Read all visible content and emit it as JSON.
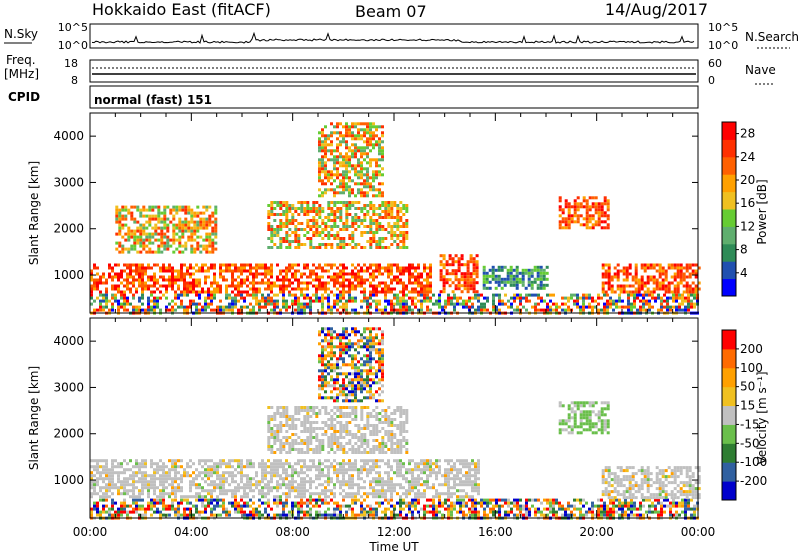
{
  "header": {
    "station": "Hokkaido East (fitACF)",
    "beam": "Beam 07",
    "date": "14/Aug/2017"
  },
  "nsky_panel": {
    "left_label": "N.Sky",
    "left_ticks": [
      "10^5",
      "10^0"
    ],
    "right_label": "N.Search",
    "right_ticks": [
      "10^5",
      "10^0"
    ]
  },
  "freq_panel": {
    "left_label_1": "Freq.",
    "left_label_2": "[MHz]",
    "left_ticks": [
      "18",
      "8"
    ],
    "right_label": "Nave",
    "right_ticks": [
      "60",
      "0"
    ]
  },
  "cpid_panel": {
    "label": "CPID",
    "value": "normal (fast) 151"
  },
  "colors": {
    "power": [
      "#0000ff",
      "#2050b0",
      "#2e8b57",
      "#5fae6e",
      "#66cc33",
      "#f0c020",
      "#ffa000",
      "#ff6000",
      "#ff3000",
      "#ff0000"
    ],
    "velocity": [
      "#0000cc",
      "#3060a0",
      "#2e7d32",
      "#6abf4b",
      "#c0c0c0",
      "#f0c020",
      "#ffa000",
      "#ff6a00",
      "#ff0000"
    ]
  },
  "chart_data": [
    {
      "type": "heatmap",
      "title": "",
      "ylabel": "Slant Range [km]",
      "xlabel": "",
      "x_tick_labels": [
        "00:00",
        "04:00",
        "08:00",
        "12:00",
        "16:00",
        "20:00",
        "00:00"
      ],
      "xlim_hours": [
        0,
        24
      ],
      "y_ticks": [
        1000,
        2000,
        3000,
        4000
      ],
      "ylim": [
        180,
        4500
      ],
      "colorbar": {
        "label": "Power [dB]",
        "ticks": [
          4,
          8,
          12,
          16,
          20,
          24,
          28
        ],
        "range": [
          0,
          30
        ]
      },
      "regions": [
        {
          "t0": 0.0,
          "t1": 24.0,
          "r0": 200,
          "r1": 600,
          "level": "high-mixed"
        },
        {
          "t0": 0.0,
          "t1": 13.5,
          "r0": 650,
          "r1": 1250,
          "level": "high"
        },
        {
          "t0": 13.8,
          "t1": 15.3,
          "r0": 650,
          "r1": 1450,
          "level": "high"
        },
        {
          "t0": 20.2,
          "t1": 24.0,
          "r0": 650,
          "r1": 1250,
          "level": "high"
        },
        {
          "t0": 7.0,
          "t1": 12.5,
          "r0": 1600,
          "r1": 2600,
          "level": "medium"
        },
        {
          "t0": 18.5,
          "t1": 20.5,
          "r0": 2000,
          "r1": 2700,
          "level": "high"
        },
        {
          "t0": 1.0,
          "t1": 5.0,
          "r0": 1500,
          "r1": 2500,
          "level": "medium"
        },
        {
          "t0": 9.0,
          "t1": 11.5,
          "r0": 2700,
          "r1": 4300,
          "level": "medium"
        },
        {
          "t0": 15.5,
          "t1": 18.0,
          "r0": 700,
          "r1": 1200,
          "level": "low"
        }
      ]
    },
    {
      "type": "heatmap",
      "title": "",
      "ylabel": "Slant Range [km]",
      "xlabel": "Time UT",
      "x_tick_labels": [
        "00:00",
        "04:00",
        "08:00",
        "12:00",
        "16:00",
        "20:00",
        "00:00"
      ],
      "xlim_hours": [
        0,
        24
      ],
      "y_ticks": [
        1000,
        2000,
        3000,
        4000
      ],
      "ylim": [
        180,
        4500
      ],
      "colorbar": {
        "label": "Velocity [m s⁻¹]",
        "tick_labels": [
          "200",
          "100",
          "50",
          "15",
          "-15",
          "-50",
          "-100",
          "-200"
        ]
      },
      "regions": [
        {
          "t0": 0.0,
          "t1": 24.0,
          "r0": 200,
          "r1": 600,
          "level": "mixed"
        },
        {
          "t0": 0.0,
          "t1": 15.3,
          "r0": 650,
          "r1": 1450,
          "level": "near-zero"
        },
        {
          "t0": 20.2,
          "t1": 24.0,
          "r0": 650,
          "r1": 1300,
          "level": "near-zero"
        },
        {
          "t0": 7.0,
          "t1": 12.5,
          "r0": 1600,
          "r1": 2600,
          "level": "near-zero"
        },
        {
          "t0": 18.5,
          "t1": 20.5,
          "r0": 2000,
          "r1": 2700,
          "level": "positive-green"
        },
        {
          "t0": 9.0,
          "t1": 11.5,
          "r0": 2700,
          "r1": 4300,
          "level": "mixed"
        }
      ]
    }
  ]
}
